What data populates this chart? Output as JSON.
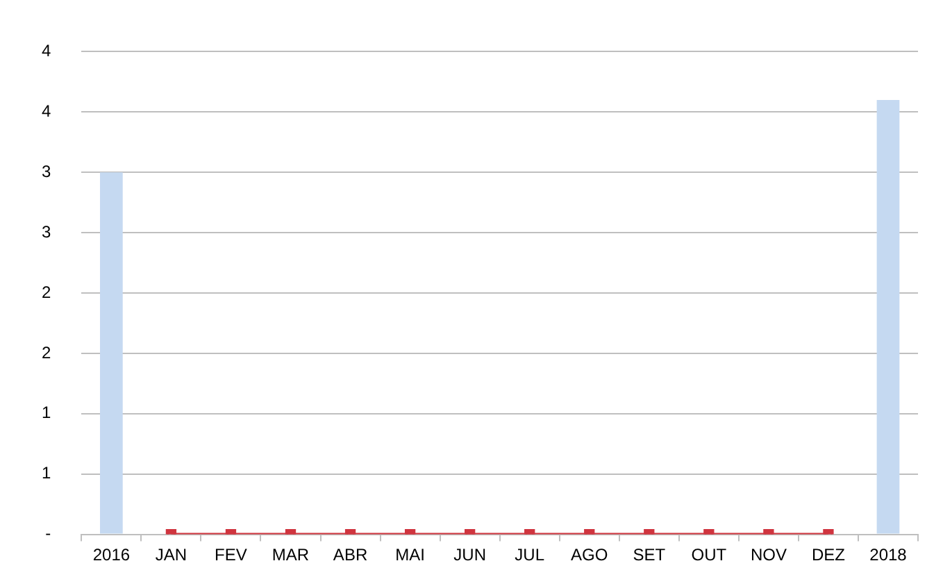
{
  "chart_data": {
    "type": "bar",
    "categories": [
      "2016",
      "JAN",
      "FEV",
      "MAR",
      "ABR",
      "MAI",
      "JUN",
      "JUL",
      "AGO",
      "SET",
      "OUT",
      "NOV",
      "DEZ",
      "2018"
    ],
    "series": [
      {
        "color": "#c5d9f1",
        "values": [
          3,
          null,
          null,
          null,
          null,
          null,
          null,
          null,
          null,
          null,
          null,
          null,
          null,
          3.6
        ]
      },
      {
        "type": "line",
        "color": "#d0353f",
        "marker": "square",
        "values": [
          null,
          0,
          0,
          0,
          0,
          0,
          0,
          0,
          0,
          0,
          0,
          0,
          0,
          null
        ]
      }
    ],
    "ylim": [
      0,
      4
    ],
    "yticks": [
      {
        "value": 0,
        "label": "-"
      },
      {
        "value": 0.5,
        "label": "1"
      },
      1,
      {
        "value": 1.5,
        "label": "2"
      },
      2,
      {
        "value": 2.5,
        "label": "3"
      },
      3,
      {
        "value": 3.5,
        "label": "4"
      },
      4
    ],
    "grid": "y",
    "legend": false
  }
}
